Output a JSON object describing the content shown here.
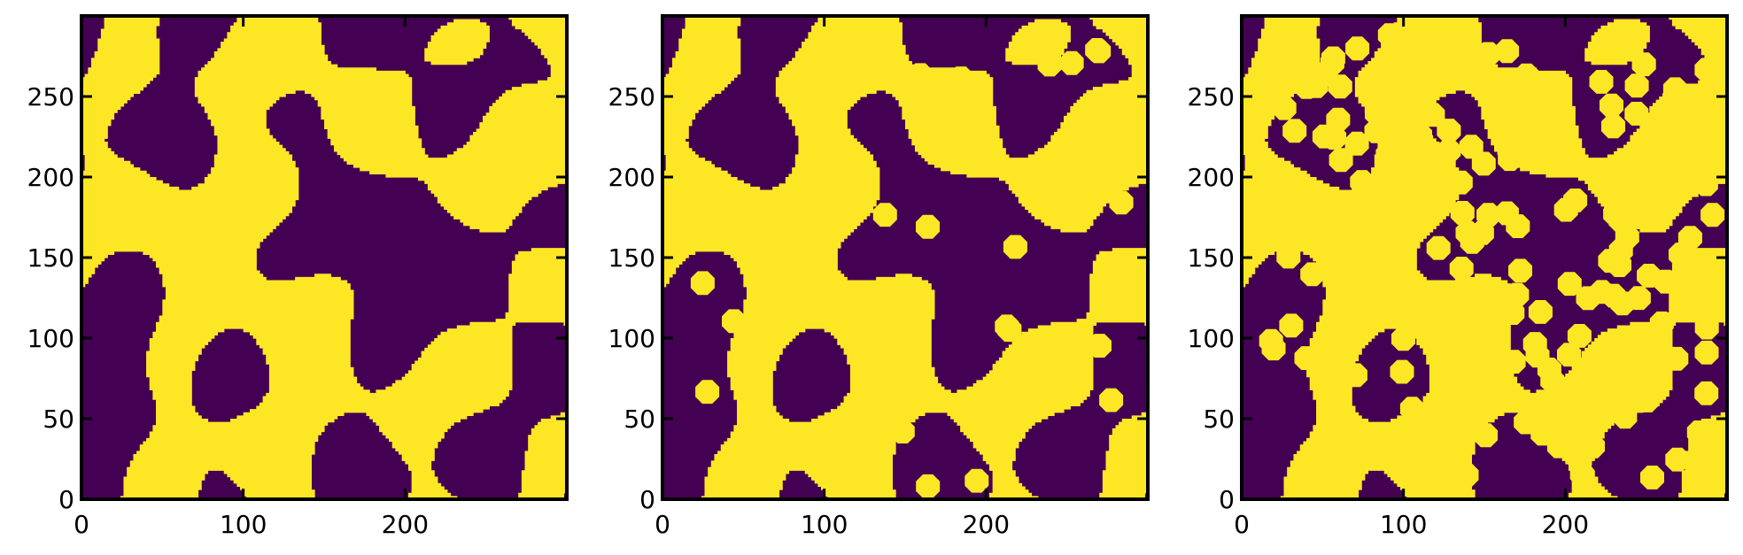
{
  "chart_data": [
    {
      "type": "heatmap",
      "title": "",
      "xlabel": "",
      "ylabel": "",
      "xlim": [
        0,
        300
      ],
      "ylim": [
        0,
        300
      ],
      "xticks": [
        0,
        100,
        200
      ],
      "yticks": [
        0,
        50,
        100,
        150,
        200,
        250
      ],
      "grid": false,
      "legend": "none",
      "colormap": {
        "low": "#440154",
        "high": "#fde725"
      },
      "pattern": "binary bicontinuous two-phase field (spinodal-like)",
      "inclusions": 0,
      "high_phase_fraction": 0.5
    },
    {
      "type": "heatmap",
      "title": "",
      "xlabel": "",
      "ylabel": "",
      "xlim": [
        0,
        300
      ],
      "ylim": [
        0,
        300
      ],
      "xticks": [
        0,
        100,
        200
      ],
      "yticks": [
        0,
        50,
        100,
        150,
        200,
        250
      ],
      "grid": false,
      "legend": "none",
      "colormap": {
        "low": "#440154",
        "high": "#fde725"
      },
      "pattern": "same binary field with added circular inclusions",
      "inclusions": 30,
      "inclusion_diameter": 16,
      "high_phase_fraction": 0.55
    },
    {
      "type": "heatmap",
      "title": "",
      "xlabel": "",
      "ylabel": "",
      "xlim": [
        0,
        300
      ],
      "ylim": [
        0,
        300
      ],
      "xticks": [
        0,
        100,
        200
      ],
      "yticks": [
        0,
        50,
        100,
        150,
        200,
        250
      ],
      "grid": false,
      "legend": "none",
      "colormap": {
        "low": "#440154",
        "high": "#fde725"
      },
      "pattern": "same binary field densely filled with circular inclusions",
      "inclusions": 150,
      "inclusion_diameter": 16,
      "high_phase_fraction": 0.75
    }
  ]
}
